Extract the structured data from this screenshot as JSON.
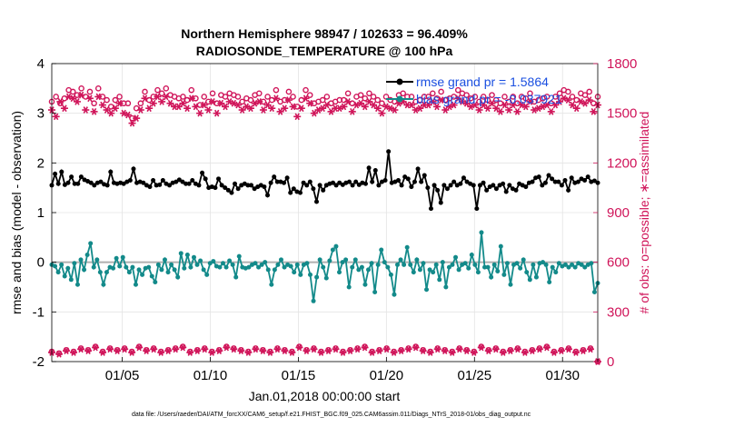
{
  "colors": {
    "rmse": "#000000",
    "bias": "#138a8a",
    "obs": "#d0155a",
    "legend_text": "#1a4fe0",
    "zero_line": "#b0b0b0",
    "grid": "#e4e4e4"
  },
  "chart_data": {
    "type": "line",
    "title": [
      "Northern Hemisphere 98947 / 102633 = 96.409%",
      "RADIOSONDE_TEMPERATURE @ 100 hPa"
    ],
    "xlabel": "Jan.01,2018 00:00:00 start",
    "ylabel": "rmse and bias (model - observation)",
    "ylabel_right": "# of obs: o=possible; ∗=assimilated",
    "xlim": [
      1,
      32
    ],
    "ylim": [
      -2,
      4
    ],
    "ylim_right": [
      0,
      1800
    ],
    "xtick_values": [
      5,
      10,
      15,
      20,
      25,
      30
    ],
    "xtick_labels": [
      "01/05",
      "01/10",
      "01/15",
      "01/20",
      "01/25",
      "01/30"
    ],
    "ytick_values": [
      -2,
      -1,
      0,
      1,
      2,
      3,
      4
    ],
    "ytick_labels": [
      "-2",
      "-1",
      "0",
      "1",
      "2",
      "3",
      "4"
    ],
    "ytick_right_values": [
      0,
      300,
      600,
      900,
      1200,
      1500,
      1800
    ],
    "ytick_right_labels": [
      "0",
      "300",
      "600",
      "900",
      "1200",
      "1500",
      "1800"
    ],
    "legend": [
      {
        "label": "rmse grand pr = 1.5864",
        "series": "rmse"
      },
      {
        "label": "bias grand pr = -0.037921",
        "series": "bias"
      }
    ],
    "series": [
      {
        "name": "rmse",
        "axis": "left",
        "values": [
          1.55,
          1.78,
          1.58,
          1.82,
          1.56,
          1.6,
          1.72,
          1.58,
          1.58,
          1.72,
          1.66,
          1.63,
          1.6,
          1.55,
          1.6,
          1.62,
          1.57,
          1.55,
          1.82,
          1.6,
          1.58,
          1.6,
          1.58,
          1.62,
          1.65,
          1.88,
          1.6,
          1.62,
          1.6,
          1.55,
          1.52,
          1.65,
          1.55,
          1.56,
          1.65,
          1.58,
          1.55,
          1.6,
          1.62,
          1.66,
          1.62,
          1.58,
          1.58,
          1.65,
          1.58,
          1.55,
          1.8,
          1.68,
          1.5,
          1.52,
          1.5,
          1.68,
          1.55,
          1.5,
          1.45,
          1.4,
          1.58,
          1.48,
          1.55,
          1.58,
          1.55,
          1.55,
          1.48,
          1.52,
          1.55,
          1.52,
          1.35,
          1.6,
          1.72,
          1.62,
          1.62,
          1.6,
          1.7,
          1.4,
          1.48,
          1.42,
          1.4,
          1.6,
          1.55,
          1.62,
          1.48,
          1.22,
          1.55,
          1.45,
          1.55,
          1.58,
          1.6,
          1.55,
          1.6,
          1.56,
          1.6,
          1.62,
          1.55,
          1.62,
          1.56,
          1.6,
          1.58,
          1.9,
          1.62,
          1.85,
          1.55,
          1.62,
          1.65,
          2.23,
          1.6,
          1.62,
          1.65,
          1.55,
          1.72,
          1.68,
          1.52,
          1.62,
          1.88,
          1.62,
          1.75,
          1.5,
          1.08,
          1.55,
          1.45,
          1.2,
          1.55,
          1.48,
          1.55,
          1.62,
          1.55,
          1.58,
          1.7,
          1.62,
          1.58,
          1.55,
          1.08,
          1.55,
          1.6,
          1.45,
          1.52,
          1.55,
          1.48,
          1.55,
          1.58,
          1.42,
          1.55,
          1.48,
          1.45,
          1.58,
          1.55,
          1.52,
          1.6,
          1.62,
          1.7,
          1.72,
          1.55,
          1.6,
          1.75,
          1.68,
          1.62,
          1.62,
          1.55,
          1.65,
          1.45,
          1.7,
          1.6,
          1.62,
          1.68,
          1.65,
          1.72,
          1.62,
          1.64,
          1.6
        ]
      },
      {
        "name": "bias",
        "axis": "left",
        "values": [
          -0.05,
          -0.08,
          -0.2,
          -0.05,
          -0.28,
          -0.12,
          -0.35,
          -0.02,
          -0.45,
          0.05,
          -0.15,
          0.15,
          0.38,
          -0.1,
          0.05,
          -0.2,
          -0.45,
          -0.2,
          -0.1,
          -0.12,
          0.08,
          -0.08,
          0.1,
          -0.1,
          -0.2,
          -0.1,
          -0.45,
          -0.15,
          -0.25,
          -0.12,
          -0.1,
          -0.28,
          -0.4,
          -0.05,
          -0.15,
          0.05,
          -0.2,
          -0.05,
          -0.15,
          -0.3,
          0.18,
          -0.12,
          0.15,
          -0.1,
          0.1,
          -0.05,
          0.03,
          -0.15,
          -0.25,
          -0.02,
          0.02,
          -0.08,
          -0.1,
          -0.02,
          -0.1,
          0.03,
          -0.05,
          -0.3,
          0.12,
          -0.1,
          -0.12,
          -0.1,
          -0.05,
          -0.02,
          -0.1,
          -0.05,
          0.0,
          -0.15,
          -0.45,
          -0.15,
          -0.05,
          0.05,
          -0.1,
          -0.05,
          -0.08,
          -0.2,
          -0.05,
          -0.25,
          -0.05,
          -0.02,
          -0.25,
          -0.78,
          -0.3,
          0.05,
          -0.1,
          -0.32,
          0.03,
          0.25,
          0.32,
          -0.2,
          0.0,
          0.05,
          -0.5,
          -0.1,
          0.05,
          -0.15,
          -0.1,
          -0.45,
          -0.15,
          -0.02,
          -0.6,
          -0.05,
          0.25,
          0.0,
          -0.1,
          -0.25,
          -0.65,
          -0.05,
          0.05,
          -0.05,
          0.3,
          -0.05,
          -0.2,
          0.05,
          -0.15,
          -0.02,
          -0.55,
          -0.15,
          -0.2,
          -0.05,
          -0.35,
          0.0,
          -0.5,
          -0.1,
          -0.05,
          0.1,
          -0.15,
          -0.05,
          -0.02,
          -0.12,
          0.15,
          -0.05,
          -0.2,
          0.6,
          -0.1,
          -0.1,
          -0.3,
          -0.05,
          -0.18,
          0.32,
          -0.25,
          -0.02,
          -0.45,
          -0.05,
          -0.02,
          -0.12,
          0.05,
          -0.2,
          -0.35,
          -0.05,
          -0.3,
          -0.02,
          0.0,
          -0.05,
          -0.4,
          -0.1,
          -0.2,
          -0.02,
          -0.08,
          -0.05,
          -0.1,
          -0.05,
          -0.1,
          -0.02,
          -0.05,
          -0.1,
          -0.05,
          -0.02,
          -0.6,
          -0.42
        ]
      },
      {
        "name": "possible",
        "axis": "right",
        "marker": "o",
        "values": [
          1570,
          1600,
          1560,
          1590,
          1640,
          1630,
          1610,
          1650,
          1600,
          1630,
          1560,
          1650,
          1600,
          1580,
          1540,
          1580,
          1600,
          1560,
          1560,
          1470,
          1530,
          1560,
          1630,
          1580,
          1600,
          1640,
          1620,
          1650,
          1610,
          1600,
          1590,
          1600,
          1580,
          1640,
          1590,
          1550,
          1600,
          1570,
          1620,
          1560,
          1610,
          1600,
          1620,
          1610,
          1600,
          1570,
          1590,
          1580,
          1610,
          1620,
          1570,
          1600,
          1580,
          1640,
          1570,
          1580,
          1630,
          1600,
          1540,
          1580,
          1640,
          1610,
          1560,
          1570,
          1580,
          1600,
          1560,
          1570,
          1580,
          1580,
          1620,
          1560,
          1600,
          1610,
          1590,
          1620,
          1600,
          1580,
          1560,
          1600,
          1580,
          1570,
          1610,
          1620,
          1600,
          1600,
          1570,
          1580,
          1600,
          1600,
          1620,
          1590,
          1630,
          1580,
          1590,
          1600,
          1640,
          1620,
          1610,
          1590,
          1600,
          1570,
          1600,
          1580,
          1610,
          1580,
          1560,
          1600,
          1570,
          1600,
          1560,
          1600,
          1590,
          1620,
          1570,
          1580,
          1590,
          1600,
          1560,
          1600,
          1620,
          1640,
          1630,
          1600,
          1580,
          1620,
          1610,
          1630,
          1560,
          1600
        ]
      },
      {
        "name": "assimilated",
        "axis": "right",
        "marker": "*",
        "values": [
          1520,
          1480,
          1570,
          1530,
          1600,
          1590,
          1570,
          1610,
          1520,
          1590,
          1510,
          1600,
          1550,
          1520,
          1500,
          1530,
          1560,
          1500,
          1490,
          1440,
          1470,
          1520,
          1590,
          1530,
          1560,
          1600,
          1570,
          1600,
          1560,
          1540,
          1540,
          1560,
          1530,
          1590,
          1540,
          1500,
          1550,
          1520,
          1570,
          1500,
          1560,
          1540,
          1570,
          1560,
          1550,
          1520,
          1540,
          1530,
          1560,
          1570,
          1520,
          1550,
          1530,
          1590,
          1510,
          1530,
          1580,
          1540,
          1480,
          1530,
          1590,
          1560,
          1500,
          1520,
          1530,
          1550,
          1510,
          1530,
          1530,
          1540,
          1570,
          1510,
          1550,
          1560,
          1540,
          1570,
          1550,
          1530,
          1500,
          1540,
          1530,
          1520,
          1560,
          1570,
          1550,
          1550,
          1520,
          1530,
          1550,
          1550,
          1570,
          1540,
          1580,
          1520,
          1540,
          1550,
          1590,
          1570,
          1560,
          1540,
          1550,
          1520,
          1550,
          1530,
          1560,
          1530,
          1510,
          1550,
          1520,
          1550,
          1510,
          1550,
          1540,
          1570,
          1520,
          1530,
          1540,
          1550,
          1510,
          1550,
          1570,
          1590,
          1580,
          1550,
          1530,
          1570,
          1560,
          1580,
          1510,
          1550
        ]
      },
      {
        "name": "possible_lower",
        "axis": "right",
        "marker": "o",
        "values": [
          60,
          50,
          70,
          60,
          80,
          70,
          90,
          60,
          80,
          70,
          80,
          60,
          90,
          70,
          80,
          60,
          70,
          80,
          90,
          60,
          70,
          80,
          60,
          70,
          90,
          80,
          70,
          60,
          80,
          70,
          60,
          80,
          70,
          60,
          90,
          70,
          80,
          60,
          70,
          80,
          60,
          70,
          80,
          90,
          60,
          70,
          80,
          60,
          70,
          80,
          90,
          70,
          60,
          80,
          70,
          60,
          80,
          70,
          60,
          90,
          70,
          80,
          60,
          70,
          80,
          60,
          70,
          80,
          90,
          60,
          70,
          80,
          60,
          70,
          80,
          0
        ]
      },
      {
        "name": "assimilated_lower",
        "axis": "right",
        "marker": "*",
        "values": [
          55,
          45,
          65,
          55,
          75,
          65,
          85,
          55,
          75,
          65,
          75,
          55,
          85,
          65,
          75,
          55,
          65,
          75,
          85,
          55,
          65,
          75,
          55,
          65,
          85,
          75,
          65,
          55,
          75,
          65,
          55,
          75,
          65,
          55,
          85,
          65,
          75,
          55,
          65,
          75,
          55,
          65,
          75,
          85,
          55,
          65,
          75,
          55,
          65,
          75,
          85,
          65,
          55,
          75,
          65,
          55,
          75,
          65,
          55,
          85,
          65,
          75,
          55,
          65,
          75,
          55,
          65,
          75,
          85,
          55,
          65,
          75,
          55,
          65,
          75,
          0
        ]
      }
    ]
  },
  "footer": {
    "data_file": "data file: /Users/raeder/DAI/ATM_forcXX/CAM6_setup/f.e21.FHIST_BGC.f09_025.CAM6assim.011/Diags_NTrS_2018-01/obs_diag_output.nc"
  }
}
